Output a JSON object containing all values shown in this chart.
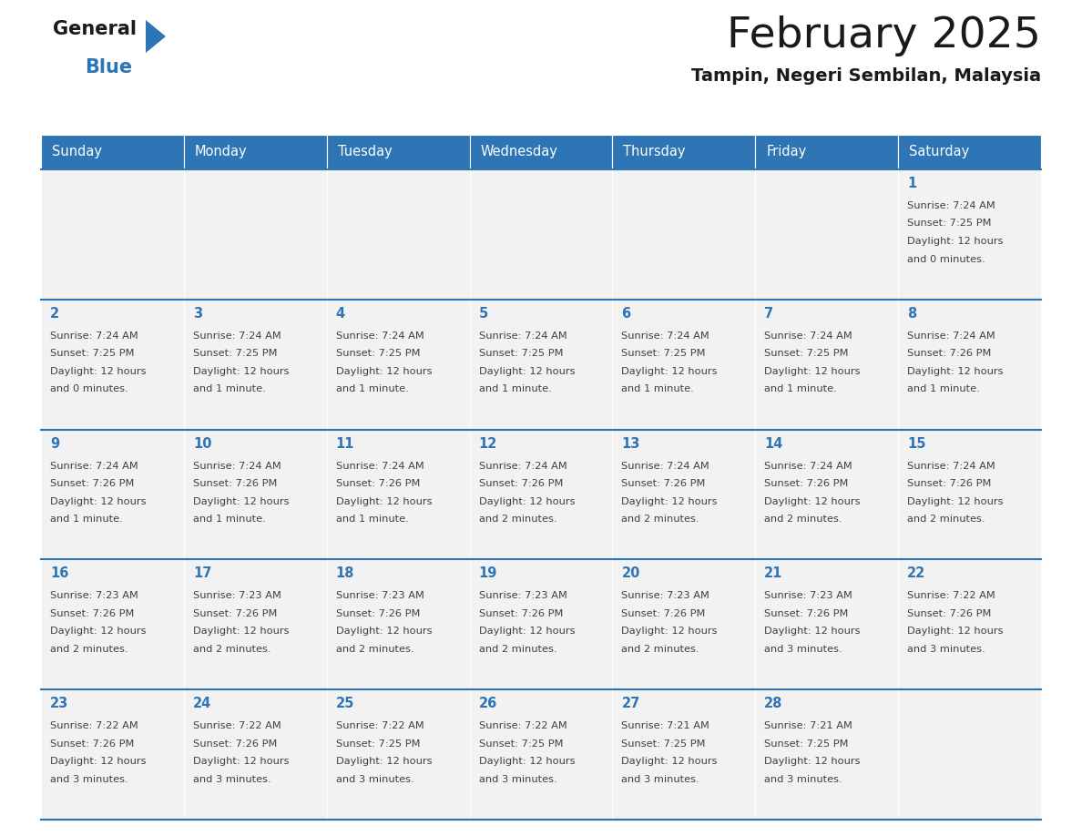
{
  "title": "February 2025",
  "subtitle": "Tampin, Negeri Sembilan, Malaysia",
  "days_of_week": [
    "Sunday",
    "Monday",
    "Tuesday",
    "Wednesday",
    "Thursday",
    "Friday",
    "Saturday"
  ],
  "header_bg": "#2e75b6",
  "header_text": "#ffffff",
  "border_color": "#2e75b6",
  "day_num_color": "#2e75b6",
  "text_color": "#404040",
  "cell_bg": "#f2f2f2",
  "calendar_data": [
    [
      {
        "day": null,
        "sunrise": null,
        "sunset": null,
        "daylight": null
      },
      {
        "day": null,
        "sunrise": null,
        "sunset": null,
        "daylight": null
      },
      {
        "day": null,
        "sunrise": null,
        "sunset": null,
        "daylight": null
      },
      {
        "day": null,
        "sunrise": null,
        "sunset": null,
        "daylight": null
      },
      {
        "day": null,
        "sunrise": null,
        "sunset": null,
        "daylight": null
      },
      {
        "day": null,
        "sunrise": null,
        "sunset": null,
        "daylight": null
      },
      {
        "day": 1,
        "sunrise": "7:24 AM",
        "sunset": "7:25 PM",
        "daylight": "12 hours\nand 0 minutes."
      }
    ],
    [
      {
        "day": 2,
        "sunrise": "7:24 AM",
        "sunset": "7:25 PM",
        "daylight": "12 hours\nand 0 minutes."
      },
      {
        "day": 3,
        "sunrise": "7:24 AM",
        "sunset": "7:25 PM",
        "daylight": "12 hours\nand 1 minute."
      },
      {
        "day": 4,
        "sunrise": "7:24 AM",
        "sunset": "7:25 PM",
        "daylight": "12 hours\nand 1 minute."
      },
      {
        "day": 5,
        "sunrise": "7:24 AM",
        "sunset": "7:25 PM",
        "daylight": "12 hours\nand 1 minute."
      },
      {
        "day": 6,
        "sunrise": "7:24 AM",
        "sunset": "7:25 PM",
        "daylight": "12 hours\nand 1 minute."
      },
      {
        "day": 7,
        "sunrise": "7:24 AM",
        "sunset": "7:25 PM",
        "daylight": "12 hours\nand 1 minute."
      },
      {
        "day": 8,
        "sunrise": "7:24 AM",
        "sunset": "7:26 PM",
        "daylight": "12 hours\nand 1 minute."
      }
    ],
    [
      {
        "day": 9,
        "sunrise": "7:24 AM",
        "sunset": "7:26 PM",
        "daylight": "12 hours\nand 1 minute."
      },
      {
        "day": 10,
        "sunrise": "7:24 AM",
        "sunset": "7:26 PM",
        "daylight": "12 hours\nand 1 minute."
      },
      {
        "day": 11,
        "sunrise": "7:24 AM",
        "sunset": "7:26 PM",
        "daylight": "12 hours\nand 1 minute."
      },
      {
        "day": 12,
        "sunrise": "7:24 AM",
        "sunset": "7:26 PM",
        "daylight": "12 hours\nand 2 minutes."
      },
      {
        "day": 13,
        "sunrise": "7:24 AM",
        "sunset": "7:26 PM",
        "daylight": "12 hours\nand 2 minutes."
      },
      {
        "day": 14,
        "sunrise": "7:24 AM",
        "sunset": "7:26 PM",
        "daylight": "12 hours\nand 2 minutes."
      },
      {
        "day": 15,
        "sunrise": "7:24 AM",
        "sunset": "7:26 PM",
        "daylight": "12 hours\nand 2 minutes."
      }
    ],
    [
      {
        "day": 16,
        "sunrise": "7:23 AM",
        "sunset": "7:26 PM",
        "daylight": "12 hours\nand 2 minutes."
      },
      {
        "day": 17,
        "sunrise": "7:23 AM",
        "sunset": "7:26 PM",
        "daylight": "12 hours\nand 2 minutes."
      },
      {
        "day": 18,
        "sunrise": "7:23 AM",
        "sunset": "7:26 PM",
        "daylight": "12 hours\nand 2 minutes."
      },
      {
        "day": 19,
        "sunrise": "7:23 AM",
        "sunset": "7:26 PM",
        "daylight": "12 hours\nand 2 minutes."
      },
      {
        "day": 20,
        "sunrise": "7:23 AM",
        "sunset": "7:26 PM",
        "daylight": "12 hours\nand 2 minutes."
      },
      {
        "day": 21,
        "sunrise": "7:23 AM",
        "sunset": "7:26 PM",
        "daylight": "12 hours\nand 3 minutes."
      },
      {
        "day": 22,
        "sunrise": "7:22 AM",
        "sunset": "7:26 PM",
        "daylight": "12 hours\nand 3 minutes."
      }
    ],
    [
      {
        "day": 23,
        "sunrise": "7:22 AM",
        "sunset": "7:26 PM",
        "daylight": "12 hours\nand 3 minutes."
      },
      {
        "day": 24,
        "sunrise": "7:22 AM",
        "sunset": "7:26 PM",
        "daylight": "12 hours\nand 3 minutes."
      },
      {
        "day": 25,
        "sunrise": "7:22 AM",
        "sunset": "7:25 PM",
        "daylight": "12 hours\nand 3 minutes."
      },
      {
        "day": 26,
        "sunrise": "7:22 AM",
        "sunset": "7:25 PM",
        "daylight": "12 hours\nand 3 minutes."
      },
      {
        "day": 27,
        "sunrise": "7:21 AM",
        "sunset": "7:25 PM",
        "daylight": "12 hours\nand 3 minutes."
      },
      {
        "day": 28,
        "sunrise": "7:21 AM",
        "sunset": "7:25 PM",
        "daylight": "12 hours\nand 3 minutes."
      },
      {
        "day": null,
        "sunrise": null,
        "sunset": null,
        "daylight": null
      }
    ]
  ]
}
